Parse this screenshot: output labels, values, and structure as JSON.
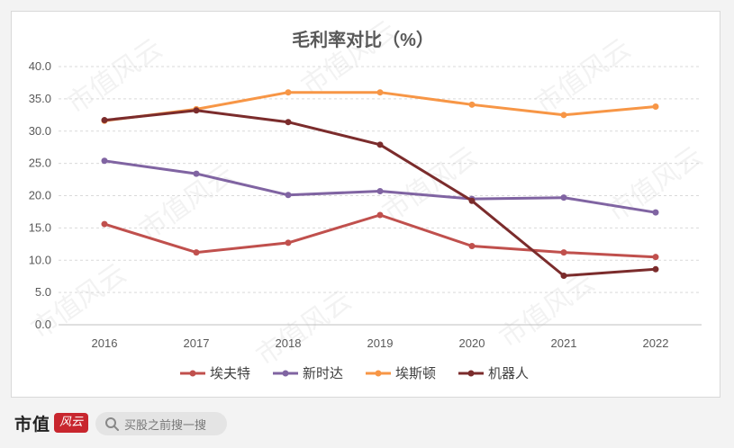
{
  "brand": {
    "name": "市值",
    "badge": "风云"
  },
  "search": {
    "placeholder": "买股之前搜一搜"
  },
  "watermark": {
    "text": "市值风云"
  },
  "colors": {
    "埃夫特": "#c0504d",
    "新时达": "#8064a2",
    "埃斯顿": "#f79646",
    "机器人": "#7b2c2c",
    "grid": "#d9d9d9",
    "axis_text": "#595959",
    "title": "#595959"
  },
  "chart_data": {
    "type": "line",
    "title": "毛利率对比（%）",
    "xlabel": "",
    "ylabel": "",
    "categories": [
      "2016",
      "2017",
      "2018",
      "2019",
      "2020",
      "2021",
      "2022"
    ],
    "ylim": [
      0,
      40
    ],
    "yticks": [
      "0.0",
      "5.0",
      "10.0",
      "15.0",
      "20.0",
      "25.0",
      "30.0",
      "35.0",
      "40.0"
    ],
    "grid": true,
    "legend_position": "bottom",
    "series": [
      {
        "name": "埃夫特",
        "values": [
          15.6,
          11.2,
          12.7,
          17.0,
          12.2,
          11.2,
          10.5
        ]
      },
      {
        "name": "新时达",
        "values": [
          25.4,
          23.4,
          20.1,
          20.7,
          19.5,
          19.7,
          17.4
        ]
      },
      {
        "name": "埃斯顿",
        "values": [
          31.6,
          33.4,
          36.0,
          36.0,
          34.1,
          32.5,
          33.8
        ]
      },
      {
        "name": "机器人",
        "values": [
          31.7,
          33.2,
          31.4,
          27.9,
          19.2,
          7.6,
          8.6
        ]
      }
    ]
  }
}
